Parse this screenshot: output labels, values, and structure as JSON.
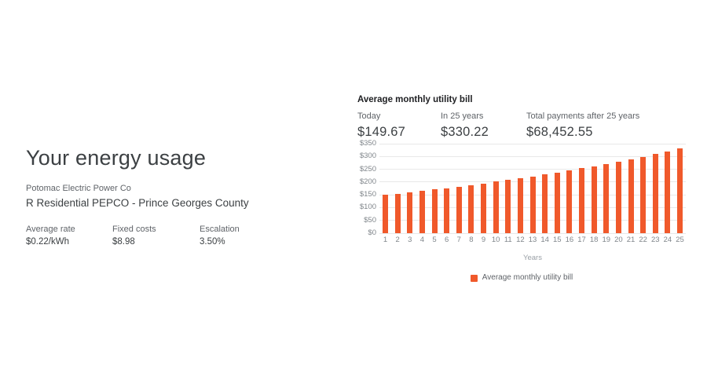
{
  "page": {
    "background": "#ffffff"
  },
  "left_panel": {
    "title": "Your energy usage",
    "utility_name": "Potomac Electric Power Co",
    "rate_plan": "R Residential PEPCO - Prince Georges County",
    "stats": [
      {
        "label": "Average rate",
        "value": "$0.22/kWh"
      },
      {
        "label": "Fixed costs",
        "value": "$8.98"
      },
      {
        "label": "Escalation",
        "value": "3.50%"
      }
    ]
  },
  "bill_panel": {
    "title": "Average monthly utility bill",
    "stats": [
      {
        "label": "Today",
        "value": "$149.67"
      },
      {
        "label": "In 25 years",
        "value": "$330.22"
      },
      {
        "label": "Total payments after 25 years",
        "value": "$68,452.55"
      }
    ]
  },
  "chart_data": {
    "type": "bar",
    "title": "Average monthly utility bill",
    "xlabel": "Years",
    "ylabel": "",
    "categories": [
      1,
      2,
      3,
      4,
      5,
      6,
      7,
      8,
      9,
      10,
      11,
      12,
      13,
      14,
      15,
      16,
      17,
      18,
      19,
      20,
      21,
      22,
      23,
      24,
      25
    ],
    "values": [
      149.67,
      154.69,
      159.87,
      165.23,
      170.77,
      176.49,
      182.41,
      188.52,
      194.84,
      201.37,
      208.12,
      215.1,
      222.31,
      229.76,
      237.46,
      245.42,
      253.65,
      262.15,
      270.94,
      280.02,
      289.41,
      299.11,
      309.14,
      319.5,
      330.22
    ],
    "ylim": [
      0,
      350
    ],
    "ytick_step": 50,
    "ytick_labels": [
      "$0",
      "$50",
      "$100",
      "$150",
      "$200",
      "$250",
      "$300",
      "$350"
    ],
    "bar_color": "#F0592B",
    "gridline_color": "#e8e8e8",
    "grid": true,
    "legend": {
      "label": "Average monthly utility bill",
      "position": "bottom",
      "swatch_color": "#F0592B"
    }
  }
}
